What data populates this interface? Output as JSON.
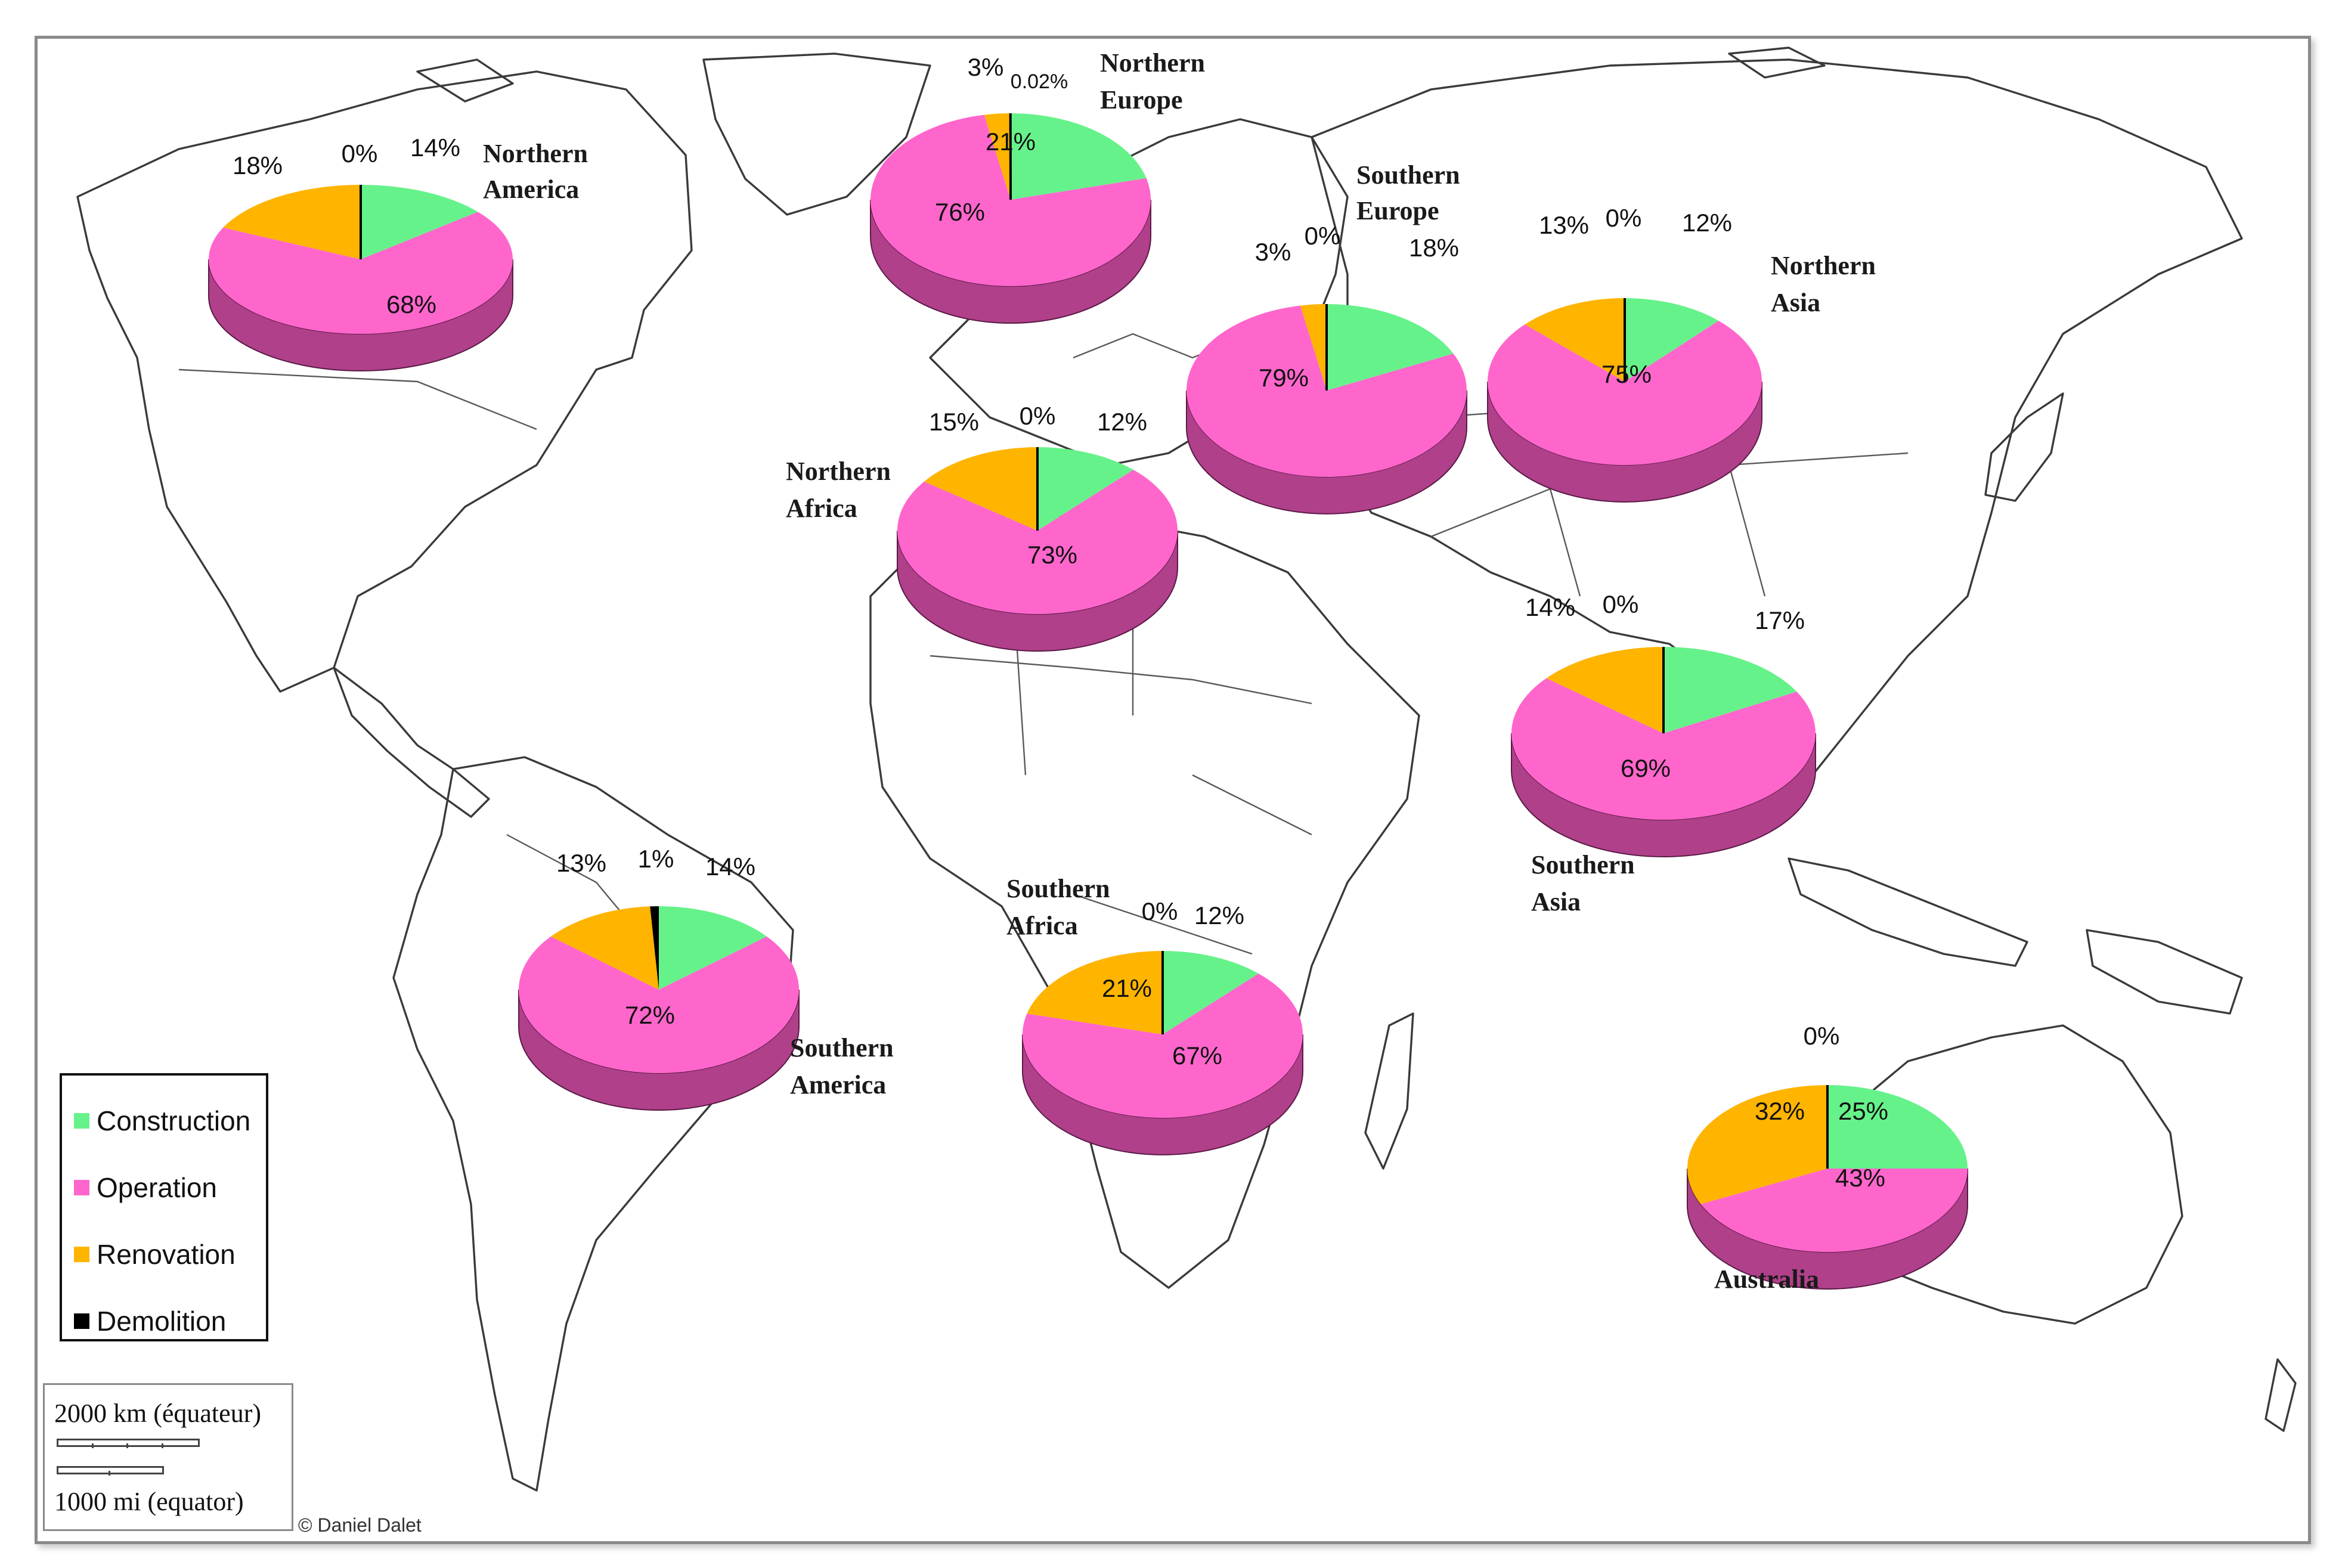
{
  "legend": {
    "items": [
      {
        "label": "Construction",
        "color": "#66f28a"
      },
      {
        "label": "Operation",
        "color": "#ff66cc"
      },
      {
        "label": "Renovation",
        "color": "#ffb400"
      },
      {
        "label": "Demolition",
        "color": "#000000"
      }
    ]
  },
  "scale": {
    "km_label": "2000 km (équateur)",
    "mi_label": "1000 mi (equator)"
  },
  "credit": "© Daniel Dalet",
  "chart_data": [
    {
      "type": "pie",
      "region": "Northern America",
      "categories": [
        "Construction",
        "Operation",
        "Renovation",
        "Demolition"
      ],
      "values": [
        14,
        68,
        18,
        0
      ],
      "labels": [
        "14%",
        "68%",
        "18%",
        "0%"
      ]
    },
    {
      "type": "pie",
      "region": "Northern Europe",
      "categories": [
        "Construction",
        "Operation",
        "Renovation",
        "Demolition"
      ],
      "values": [
        21,
        76,
        3,
        0.02
      ],
      "labels": [
        "21%",
        "76%",
        "3%",
        "0.02%"
      ]
    },
    {
      "type": "pie",
      "region": "Southern Europe",
      "categories": [
        "Construction",
        "Operation",
        "Renovation",
        "Demolition"
      ],
      "values": [
        18,
        79,
        3,
        0
      ],
      "labels": [
        "18%",
        "79%",
        "3%",
        "0%"
      ]
    },
    {
      "type": "pie",
      "region": "Northern Asia",
      "categories": [
        "Construction",
        "Operation",
        "Renovation",
        "Demolition"
      ],
      "values": [
        12,
        75,
        13,
        0
      ],
      "labels": [
        "12%",
        "75%",
        "13%",
        "0%"
      ]
    },
    {
      "type": "pie",
      "region": "Northern Africa",
      "categories": [
        "Construction",
        "Operation",
        "Renovation",
        "Demolition"
      ],
      "values": [
        12,
        73,
        15,
        0
      ],
      "labels": [
        "12%",
        "73%",
        "15%",
        "0%"
      ]
    },
    {
      "type": "pie",
      "region": "Southern Asia",
      "categories": [
        "Construction",
        "Operation",
        "Renovation",
        "Demolition"
      ],
      "values": [
        17,
        69,
        14,
        0
      ],
      "labels": [
        "17%",
        "69%",
        "14%",
        "0%"
      ]
    },
    {
      "type": "pie",
      "region": "Southern America",
      "categories": [
        "Construction",
        "Operation",
        "Renovation",
        "Demolition"
      ],
      "values": [
        14,
        72,
        13,
        1
      ],
      "labels": [
        "14%",
        "72%",
        "13%",
        "1%"
      ]
    },
    {
      "type": "pie",
      "region": "Southern Africa",
      "categories": [
        "Construction",
        "Operation",
        "Renovation",
        "Demolition"
      ],
      "values": [
        12,
        67,
        21,
        0
      ],
      "labels": [
        "12%",
        "67%",
        "21%",
        "0%"
      ]
    },
    {
      "type": "pie",
      "region": "Australia",
      "categories": [
        "Construction",
        "Operation",
        "Renovation",
        "Demolition"
      ],
      "values": [
        25,
        43,
        32,
        0
      ],
      "labels": [
        "25%",
        "43%",
        "32%",
        "0%"
      ]
    }
  ]
}
